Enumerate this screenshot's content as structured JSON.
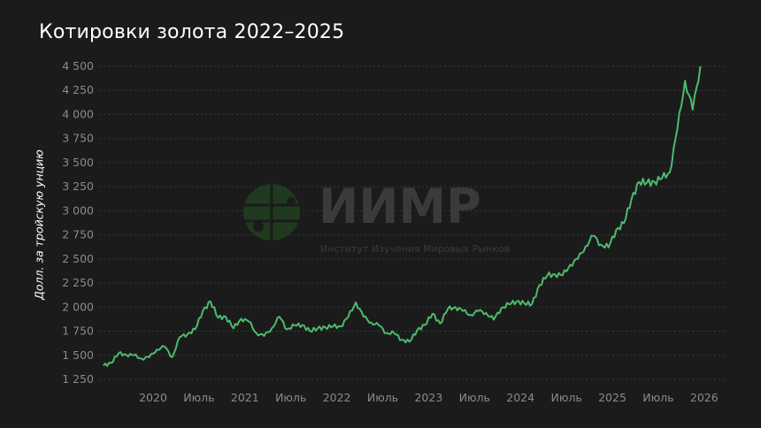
{
  "title": "Котировки золота 2022–2025",
  "watermark": {
    "name": "ИИМР",
    "subtitle": "Институт Изучения Мировых Рынков"
  },
  "colors": {
    "background": "#1b1b1c",
    "line": "#4cbb6c",
    "text": "#ffffff",
    "ticks": "#8a8a8a",
    "watermark_globe": "#1f3a1f"
  },
  "chart_data": {
    "type": "line",
    "title": "Котировки золота 2022–2025",
    "ylabel": "Долл. за тройскую унцию",
    "xlabel": "",
    "ylim": [
      1250,
      4500
    ],
    "yticks": [
      1250,
      1500,
      1750,
      2000,
      2250,
      2500,
      2750,
      3000,
      3250,
      3500,
      3750,
      4000,
      4250,
      4500
    ],
    "ytick_labels": [
      "1 250",
      "1 500",
      "1 750",
      "2 000",
      "2 250",
      "2 500",
      "2 750",
      "3 000",
      "3 250",
      "3 500",
      "3 750",
      "4 000",
      "4 250",
      "4 500"
    ],
    "xticks": [
      "2020-01",
      "2020-07",
      "2021-01",
      "2021-07",
      "2022-01",
      "2022-07",
      "2023-01",
      "2023-07",
      "2024-01",
      "2024-07",
      "2025-01",
      "2025-07",
      "2026-01"
    ],
    "xtick_labels": [
      "2020",
      "Июль",
      "2021",
      "Июль",
      "2022",
      "Июль",
      "2023",
      "Июль",
      "2024",
      "Июль",
      "2025",
      "Июль",
      "2026"
    ],
    "grid": "horizontal dotted",
    "x": [
      "2019-06",
      "2019-07",
      "2019-08",
      "2019-09",
      "2019-10",
      "2019-11",
      "2019-12",
      "2020-01",
      "2020-02",
      "2020-03",
      "2020-04",
      "2020-05",
      "2020-06",
      "2020-07",
      "2020-08",
      "2020-09",
      "2020-10",
      "2020-11",
      "2020-12",
      "2021-01",
      "2021-02",
      "2021-03",
      "2021-04",
      "2021-05",
      "2021-06",
      "2021-07",
      "2021-08",
      "2021-09",
      "2021-10",
      "2021-11",
      "2021-12",
      "2022-01",
      "2022-02",
      "2022-03",
      "2022-04",
      "2022-05",
      "2022-06",
      "2022-07",
      "2022-08",
      "2022-09",
      "2022-10",
      "2022-11",
      "2022-12",
      "2023-01",
      "2023-02",
      "2023-03",
      "2023-04",
      "2023-05",
      "2023-06",
      "2023-07",
      "2023-08",
      "2023-09",
      "2023-10",
      "2023-11",
      "2023-12",
      "2024-01",
      "2024-02",
      "2024-03",
      "2024-04",
      "2024-05",
      "2024-06",
      "2024-07",
      "2024-08",
      "2024-09",
      "2024-10",
      "2024-11",
      "2024-12",
      "2025-01",
      "2025-02",
      "2025-03",
      "2025-04",
      "2025-05",
      "2025-06",
      "2025-07",
      "2025-08",
      "2025-09",
      "2025-10",
      "2025-11",
      "2025-12"
    ],
    "series": [
      {
        "values": [
          1395,
          1420,
          1520,
          1505,
          1500,
          1465,
          1480,
          1560,
          1590,
          1480,
          1690,
          1720,
          1770,
          1960,
          2060,
          1890,
          1900,
          1780,
          1880,
          1850,
          1730,
          1700,
          1780,
          1900,
          1770,
          1810,
          1815,
          1750,
          1780,
          1790,
          1800,
          1800,
          1900,
          2050,
          1900,
          1840,
          1810,
          1730,
          1730,
          1660,
          1640,
          1760,
          1815,
          1930,
          1830,
          1980,
          2000,
          1960,
          1920,
          1960,
          1940,
          1870,
          1990,
          2030,
          2060,
          2040,
          2030,
          2230,
          2330,
          2340,
          2330,
          2440,
          2500,
          2630,
          2740,
          2650,
          2620,
          2800,
          2870,
          3120,
          3300,
          3290,
          3300,
          3340,
          3400,
          3850,
          4350,
          4050,
          4500
        ]
      }
    ]
  }
}
